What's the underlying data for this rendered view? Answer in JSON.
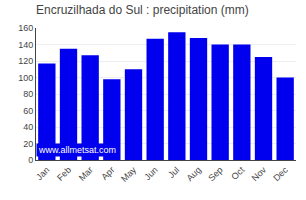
{
  "chart_data": {
    "type": "bar",
    "title": "Encruzilhada do Sul : precipitation (mm)",
    "categories": [
      "Jan",
      "Feb",
      "Mar",
      "Apr",
      "May",
      "Jun",
      "Jul",
      "Aug",
      "Sep",
      "Oct",
      "Nov",
      "Dec"
    ],
    "values": [
      117,
      135,
      127,
      98,
      110,
      147,
      155,
      148,
      140,
      140,
      125,
      100
    ],
    "color": "#0000ee",
    "ylim": [
      0,
      160
    ],
    "yticks": [
      0,
      20,
      40,
      60,
      80,
      100,
      120,
      140,
      160
    ],
    "grid": true,
    "annotations": [
      "www.allmetsat.com"
    ]
  }
}
